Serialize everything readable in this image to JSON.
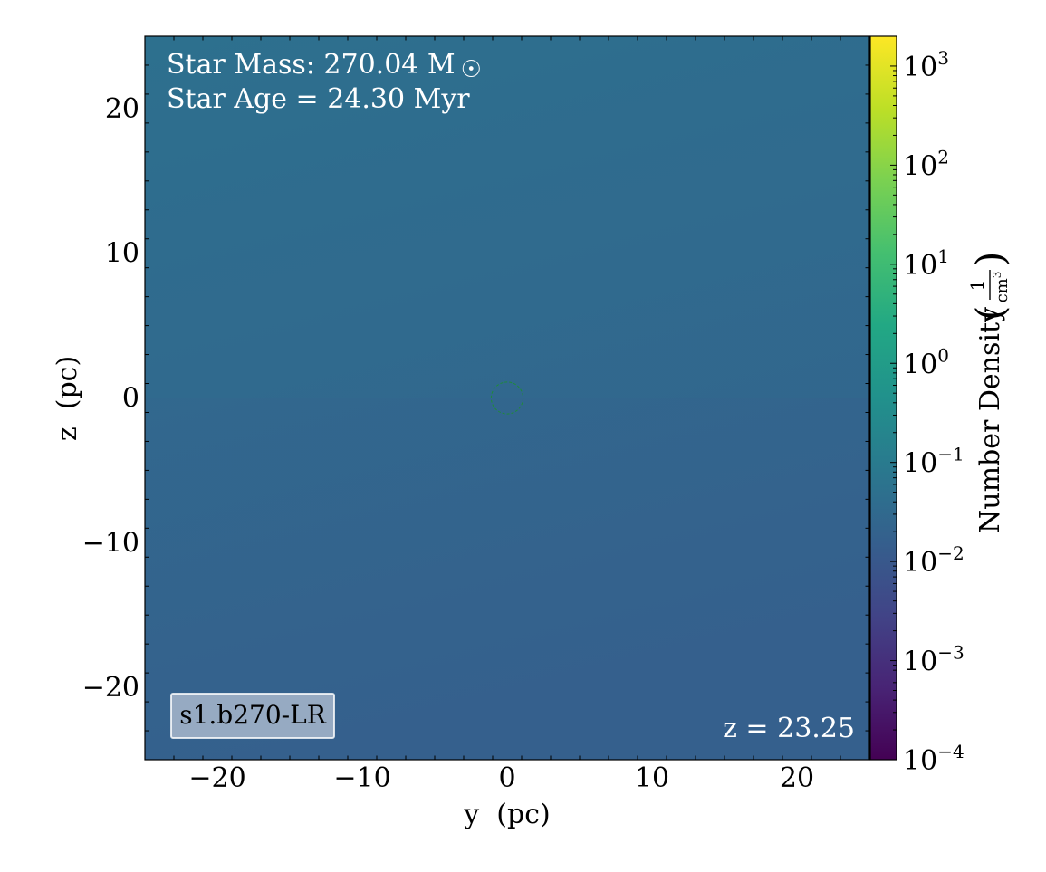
{
  "chart_data": {
    "type": "heatmap",
    "title": "",
    "xlabel": "y  (pc)",
    "ylabel": "z  (pc)",
    "xlim": [
      -25,
      25
    ],
    "ylim": [
      -25,
      25
    ],
    "x_ticks": [
      -20,
      -10,
      0,
      10,
      20
    ],
    "y_ticks": [
      -20,
      -10,
      0,
      10,
      20
    ],
    "x_tick_labels": [
      "−20",
      "−10",
      "0",
      "10",
      "20"
    ],
    "y_tick_labels": [
      "−20",
      "−10",
      "0",
      "10",
      "20"
    ],
    "colorbar": {
      "label": "Number Density",
      "unit_numerator": "1",
      "unit_denominator": "cm",
      "unit_exponent": "3",
      "scale": "log",
      "colormap": "viridis",
      "vmin": 0.0001,
      "vmax": 2000,
      "ticks": [
        {
          "value": 0.0001,
          "exponent": "−4"
        },
        {
          "value": 0.001,
          "exponent": "−3"
        },
        {
          "value": 0.01,
          "exponent": "−2"
        },
        {
          "value": 0.1,
          "exponent": "−1"
        },
        {
          "value": 1,
          "exponent": "0"
        },
        {
          "value": 10,
          "exponent": "1"
        },
        {
          "value": 100,
          "exponent": "2"
        },
        {
          "value": 1000,
          "exponent": "3"
        }
      ],
      "tick_base": "10"
    },
    "field": {
      "description_values": "approximately uniform number density ~0.02–0.04 cm^-3, slightly higher toward top-right",
      "value_top": 0.04,
      "value_bottom": 0.02,
      "color_top": "#2e6f8e",
      "color_bottom": "#35608d"
    },
    "marker": {
      "type": "circle",
      "x": 0,
      "y": 0,
      "radius_pc": 1.1,
      "color": "#1f8a3b"
    },
    "annotations": {
      "star_mass": "Star Mass: 270.04 M",
      "star_mass_symbol": "☉",
      "star_age": "Star Age = 24.30 Myr",
      "redshift": "z = 23.25",
      "run_label": "s1.b270-LR"
    }
  }
}
